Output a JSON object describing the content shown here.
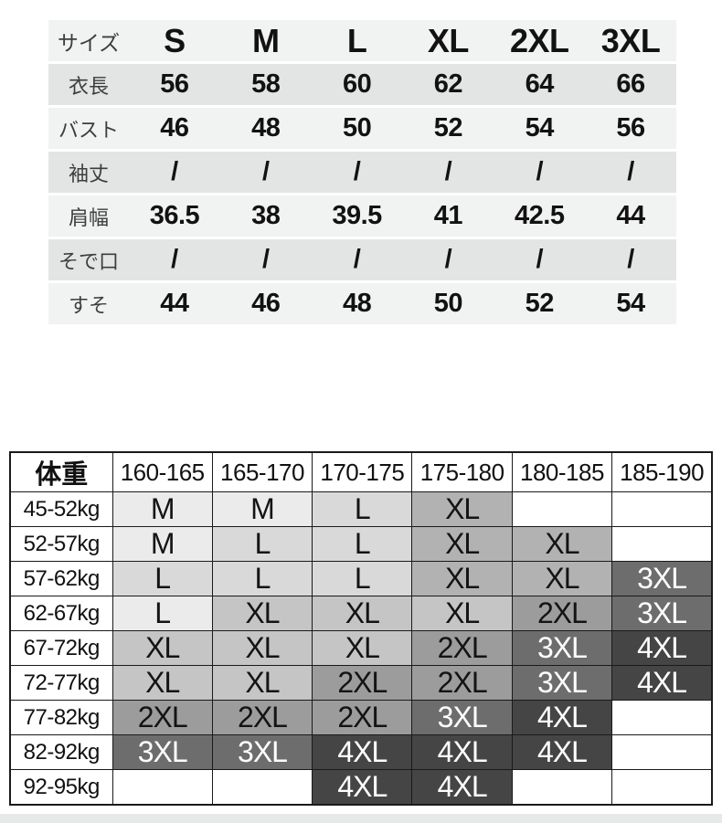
{
  "size_chart": {
    "header_label": "サイズ",
    "sizes": [
      "S",
      "M",
      "L",
      "XL",
      "2XL",
      "3XL"
    ],
    "rows": [
      {
        "label": "衣長",
        "values": [
          "56",
          "58",
          "60",
          "62",
          "64",
          "66"
        ]
      },
      {
        "label": "バスト",
        "values": [
          "46",
          "48",
          "50",
          "52",
          "54",
          "56"
        ]
      },
      {
        "label": "袖丈",
        "values": [
          "/",
          "/",
          "/",
          "/",
          "/",
          "/"
        ]
      },
      {
        "label": "肩幅",
        "values": [
          "36.5",
          "38",
          "39.5",
          "41",
          "42.5",
          "44"
        ]
      },
      {
        "label": "そで口",
        "values": [
          "/",
          "/",
          "/",
          "/",
          "/",
          "/"
        ]
      },
      {
        "label": "すそ",
        "values": [
          "44",
          "46",
          "48",
          "50",
          "52",
          "54"
        ]
      }
    ],
    "colors": {
      "row_light": "#f1f2f2",
      "row_dark": "#e3e4e4"
    }
  },
  "fit_chart": {
    "corner_label": "体重",
    "height_ranges": [
      "160-165",
      "165-170",
      "170-175",
      "175-180",
      "180-185",
      "185-190"
    ],
    "rows": [
      {
        "label": "45-52kg",
        "cells": [
          {
            "size": "M",
            "shade": "A"
          },
          {
            "size": "M",
            "shade": "A"
          },
          {
            "size": "L",
            "shade": "B"
          },
          {
            "size": "XL",
            "shade": "D"
          },
          {
            "size": "",
            "shade": "W"
          },
          {
            "size": "",
            "shade": "W"
          }
        ]
      },
      {
        "label": "52-57kg",
        "cells": [
          {
            "size": "M",
            "shade": "A"
          },
          {
            "size": "L",
            "shade": "B"
          },
          {
            "size": "L",
            "shade": "B"
          },
          {
            "size": "XL",
            "shade": "D"
          },
          {
            "size": "XL",
            "shade": "D"
          },
          {
            "size": "",
            "shade": "W"
          }
        ]
      },
      {
        "label": "57-62kg",
        "cells": [
          {
            "size": "L",
            "shade": "B"
          },
          {
            "size": "L",
            "shade": "B"
          },
          {
            "size": "L",
            "shade": "B"
          },
          {
            "size": "XL",
            "shade": "D"
          },
          {
            "size": "XL",
            "shade": "D"
          },
          {
            "size": "3XL",
            "shade": "F"
          }
        ]
      },
      {
        "label": "62-67kg",
        "cells": [
          {
            "size": "L",
            "shade": "A"
          },
          {
            "size": "XL",
            "shade": "C"
          },
          {
            "size": "XL",
            "shade": "C"
          },
          {
            "size": "XL",
            "shade": "C"
          },
          {
            "size": "2XL",
            "shade": "E"
          },
          {
            "size": "3XL",
            "shade": "F"
          }
        ]
      },
      {
        "label": "67-72kg",
        "cells": [
          {
            "size": "XL",
            "shade": "C"
          },
          {
            "size": "XL",
            "shade": "C"
          },
          {
            "size": "XL",
            "shade": "C"
          },
          {
            "size": "2XL",
            "shade": "E"
          },
          {
            "size": "3XL",
            "shade": "F"
          },
          {
            "size": "4XL",
            "shade": "G"
          }
        ]
      },
      {
        "label": "72-77kg",
        "cells": [
          {
            "size": "XL",
            "shade": "C"
          },
          {
            "size": "XL",
            "shade": "C"
          },
          {
            "size": "2XL",
            "shade": "E"
          },
          {
            "size": "2XL",
            "shade": "E"
          },
          {
            "size": "3XL",
            "shade": "F"
          },
          {
            "size": "4XL",
            "shade": "G"
          }
        ]
      },
      {
        "label": "77-82kg",
        "cells": [
          {
            "size": "2XL",
            "shade": "E"
          },
          {
            "size": "2XL",
            "shade": "E"
          },
          {
            "size": "2XL",
            "shade": "E"
          },
          {
            "size": "3XL",
            "shade": "F"
          },
          {
            "size": "4XL",
            "shade": "G"
          },
          {
            "size": "",
            "shade": "W"
          }
        ]
      },
      {
        "label": "82-92kg",
        "cells": [
          {
            "size": "3XL",
            "shade": "F"
          },
          {
            "size": "3XL",
            "shade": "F"
          },
          {
            "size": "4XL",
            "shade": "G"
          },
          {
            "size": "4XL",
            "shade": "G"
          },
          {
            "size": "4XL",
            "shade": "G"
          },
          {
            "size": "",
            "shade": "W"
          }
        ]
      },
      {
        "label": "92-95kg",
        "cells": [
          {
            "size": "",
            "shade": "W"
          },
          {
            "size": "",
            "shade": "W"
          },
          {
            "size": "4XL",
            "shade": "G"
          },
          {
            "size": "4XL",
            "shade": "G"
          },
          {
            "size": "",
            "shade": "W"
          },
          {
            "size": "",
            "shade": "W"
          }
        ]
      }
    ],
    "shades": {
      "W": "#ffffff",
      "A": "#ebebeb",
      "B": "#d9d9d9",
      "C": "#c5c5c5",
      "D": "#b2b2b2",
      "E": "#9c9c9c",
      "F": "#6d6d6d",
      "G": "#454545"
    },
    "light_text_shades": [
      "F",
      "G"
    ],
    "text_dark": "#141414",
    "text_light": "#ffffff"
  }
}
